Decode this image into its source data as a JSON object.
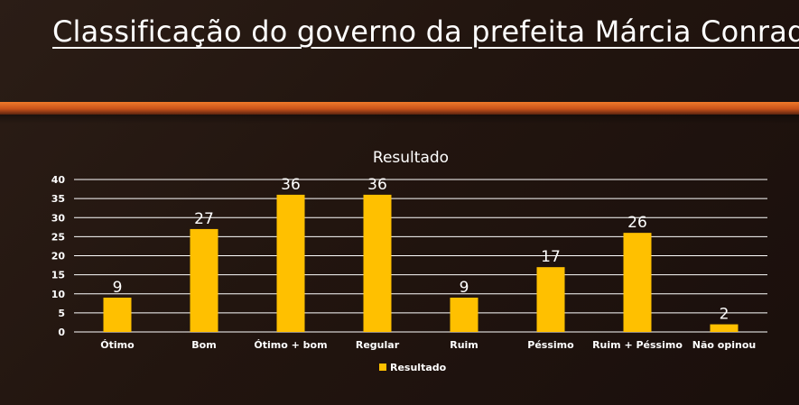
{
  "slide": {
    "title": "Classificação do governo da prefeita Márcia Conrado"
  },
  "colors": {
    "bar": "#FFC000",
    "band": "#E86A24",
    "grid": "#FFFFFF",
    "text": "#FFFFFF"
  },
  "chart_data": {
    "type": "bar",
    "title": "Resultado",
    "xlabel": "",
    "ylabel": "",
    "categories": [
      "Ótimo",
      "Bom",
      "Ótimo + bom",
      "Regular",
      "Ruim",
      "Péssimo",
      "Ruim + Péssimo",
      "Não opinou"
    ],
    "series": [
      {
        "name": "Resultado",
        "values": [
          9,
          27,
          36,
          36,
          9,
          17,
          26,
          2
        ]
      }
    ],
    "ylim": [
      0,
      40
    ],
    "yticks": [
      0,
      5,
      10,
      15,
      20,
      25,
      30,
      35,
      40
    ],
    "grid": true,
    "data_labels": true,
    "legend": "bottom"
  }
}
